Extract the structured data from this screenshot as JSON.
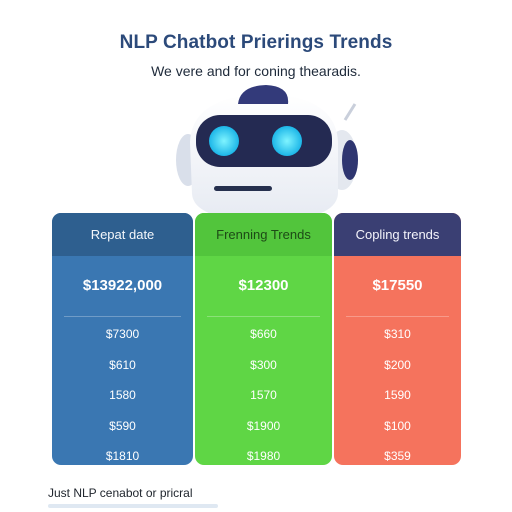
{
  "title": "NLP Chatbot Prierings Trends",
  "subtitle": "We vere and for coning thearadis.",
  "robot_icon": "robot-head-icon",
  "colors": {
    "title": "#2c4a7a",
    "col1": "#3a77b2",
    "col2": "#5fd645",
    "col3": "#f5735d",
    "col3_header": "#3a3f73"
  },
  "columns": [
    {
      "header": "Repat date",
      "total": "$13922,000",
      "rows": [
        "$7300",
        "$610",
        "1580",
        "$590",
        "$1810"
      ]
    },
    {
      "header": "Frenning Trends",
      "total": "$12300",
      "rows": [
        "$660",
        "$300",
        "1570",
        "$1900",
        "$1980"
      ]
    },
    {
      "header": "Copling trends",
      "total": "$17550",
      "rows": [
        "$310",
        "$200",
        "1590",
        "$100",
        "$359"
      ]
    }
  ],
  "footer": "Just NLP cenabot or pricral"
}
